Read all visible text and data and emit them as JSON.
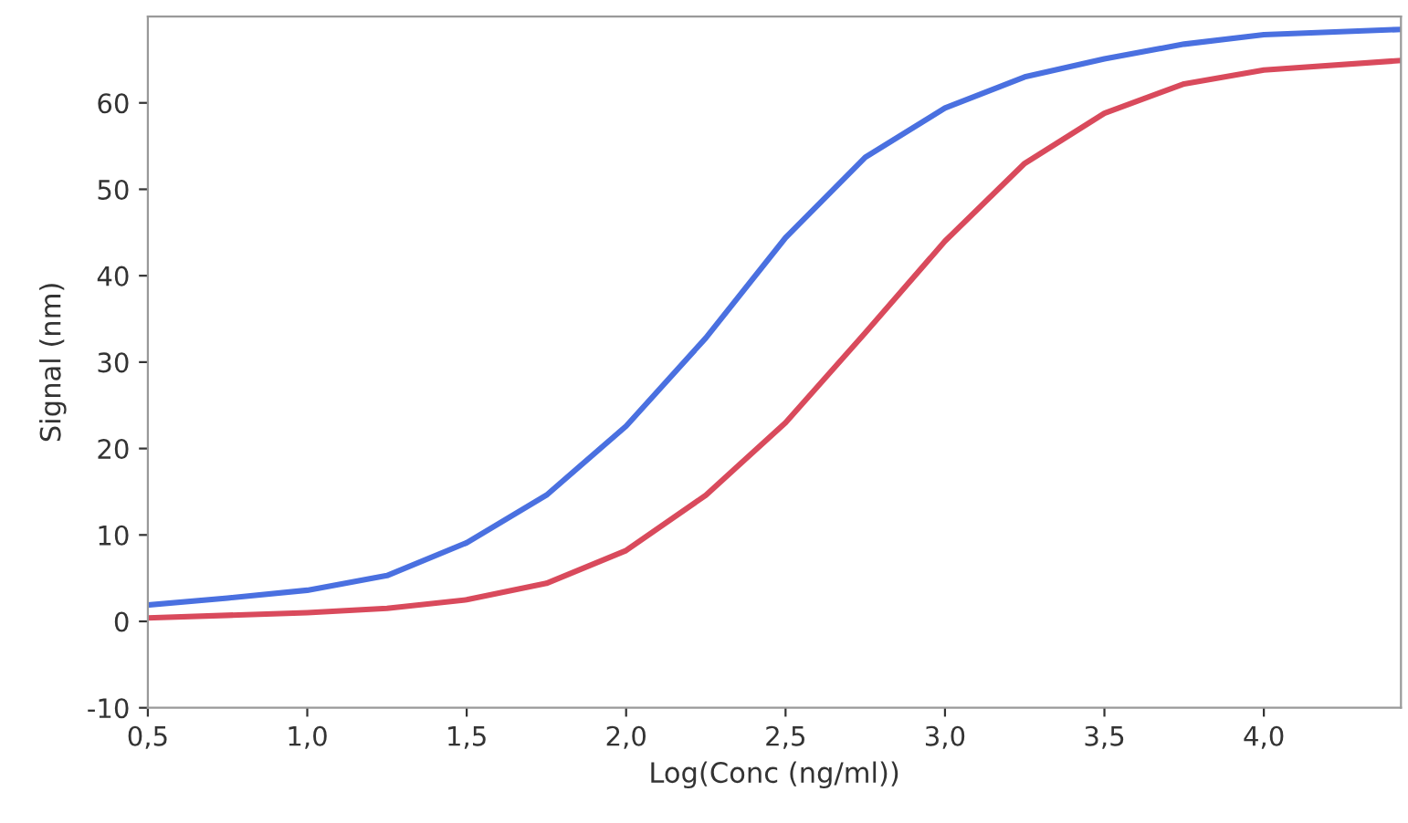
{
  "chart_data": {
    "type": "line",
    "xlabel": "Log(Conc (ng/ml))",
    "ylabel": "Signal (nm)",
    "xlim": [
      0.5,
      4.43
    ],
    "ylim": [
      -10,
      70
    ],
    "xticks": [
      {
        "value": 0.5,
        "label": "0,5"
      },
      {
        "value": 1.0,
        "label": "1,0"
      },
      {
        "value": 1.5,
        "label": "1,5"
      },
      {
        "value": 2.0,
        "label": "2,0"
      },
      {
        "value": 2.5,
        "label": "2,5"
      },
      {
        "value": 3.0,
        "label": "3,0"
      },
      {
        "value": 3.5,
        "label": "3,5"
      },
      {
        "value": 4.0,
        "label": "4,0"
      }
    ],
    "yticks": [
      -10,
      0,
      10,
      20,
      30,
      40,
      50,
      60
    ],
    "x": [
      0.5,
      0.75,
      1.0,
      1.25,
      1.5,
      1.75,
      2.0,
      2.25,
      2.5,
      2.75,
      3.0,
      3.25,
      3.5,
      3.75,
      4.0,
      4.43
    ],
    "series": [
      {
        "color": "#4a70e0",
        "values": [
          1.9,
          2.7,
          3.6,
          5.3,
          9.1,
          14.6,
          22.6,
          32.8,
          44.4,
          53.7,
          59.4,
          63.0,
          65.1,
          66.8,
          67.9,
          68.5
        ]
      },
      {
        "color": "#d94a5c",
        "values": [
          0.4,
          0.7,
          1.0,
          1.5,
          2.5,
          4.4,
          8.2,
          14.6,
          23.0,
          33.4,
          44.0,
          53.0,
          58.8,
          62.2,
          63.8,
          64.9
        ]
      }
    ],
    "grid": false,
    "marker": "none",
    "line_style": "solid"
  }
}
